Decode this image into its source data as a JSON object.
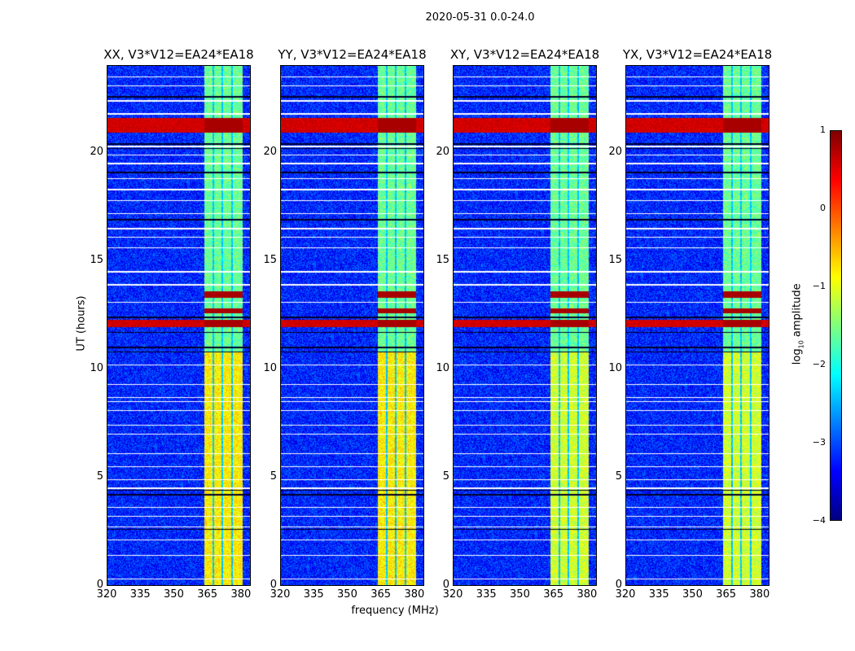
{
  "chart_data": {
    "type": "heatmap",
    "suptitle": "2020-05-31 0.0-24.0",
    "xlabel": "frequency (MHz)",
    "ylabel": "UT (hours)",
    "xlim": [
      320,
      384.4
    ],
    "ylim": [
      0,
      24
    ],
    "xticks": [
      "320",
      "335",
      "350",
      "365",
      "380"
    ],
    "xtick_values": [
      320,
      335,
      350,
      365,
      380
    ],
    "yticks": [
      "0",
      "5",
      "10",
      "15",
      "20"
    ],
    "ytick_values": [
      0,
      5,
      10,
      15,
      20
    ],
    "panels": [
      {
        "title": "XX, V3*V12=EA24*EA18"
      },
      {
        "title": "YY, V3*V12=EA24*EA18"
      },
      {
        "title": "XY, V3*V12=EA24*EA18"
      },
      {
        "title": "YX, V3*V12=EA24*EA18"
      }
    ],
    "colorbar": {
      "label_prefix": "log",
      "label_sub": "10",
      "label_suffix": " amplitude",
      "range": [
        -4,
        1
      ],
      "ticks": [
        "1",
        "0",
        "−1",
        "−2",
        "−3",
        "−4"
      ],
      "tick_values": [
        1,
        0,
        -1,
        -2,
        -3,
        -4
      ],
      "colormap": "jet"
    },
    "background_level": -3.2,
    "rfi_band_mhz": [
      363.5,
      381
    ],
    "rfi_gaps_mhz": [
      367.5,
      371.8,
      376.2
    ],
    "rfi_level_before_10_8h": -0.8,
    "rfi_level_after_10_8h": -1.6,
    "bright_rows_hours": [
      [
        20.95,
        21.6,
        0.6
      ],
      [
        11.95,
        12.3,
        0.6
      ],
      [
        12.6,
        12.8,
        -0.2
      ],
      [
        13.3,
        13.6,
        -0.3
      ]
    ],
    "flagged_rows_hours": [
      0.3,
      1.4,
      2.1,
      2.7,
      3.2,
      3.6,
      4.5,
      4.9,
      5.5,
      6.1,
      7.0,
      7.4,
      8.1,
      8.5,
      8.7,
      9.3,
      10.2,
      13.1,
      13.9,
      14.5,
      15.6,
      16.1,
      16.5,
      17.2,
      17.8,
      18.3,
      18.8,
      19.5,
      19.9,
      20.3,
      21.8,
      22.4,
      23.1,
      23.5
    ],
    "dark_rows_hours": [
      2.6,
      4.2,
      4.4,
      10.8,
      11.0,
      11.7,
      12.4,
      16.9,
      19.1,
      20.2,
      20.4,
      22.6
    ]
  }
}
